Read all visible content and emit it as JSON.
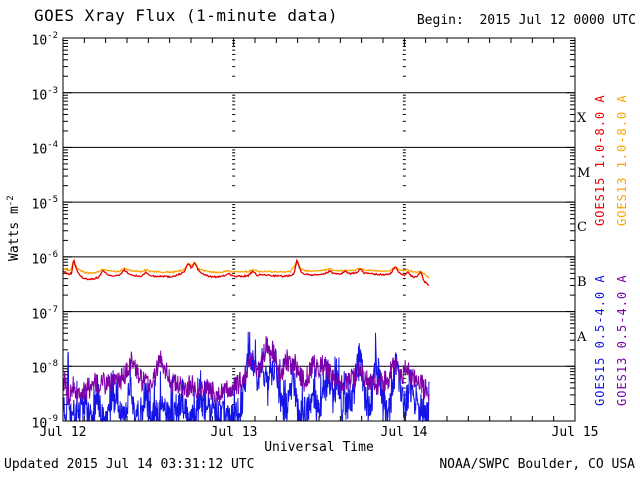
{
  "page": {
    "title": "GOES Xray Flux (1-minute data)",
    "begin_label": "Begin:  2015 Jul 12 0000 UTC",
    "footer_left": "Updated 2015 Jul 14 03:31:12 UTC",
    "footer_right": "NOAA/SWPC Boulder, CO USA"
  },
  "chart_data": {
    "type": "line",
    "title": "GOES Xray Flux (1-minute data)",
    "xlabel": "Universal Time",
    "ylabel_base": "Watts m",
    "ylabel_exp": "-2",
    "x_range_hours": [
      0,
      72
    ],
    "x_minor_tick_hours": 3,
    "x_major_ticks": [
      {
        "hour": 0,
        "label": "Jul 12"
      },
      {
        "hour": 24,
        "label": "Jul 13"
      },
      {
        "hour": 48,
        "label": "Jul 14"
      },
      {
        "hour": 72,
        "label": "Jul 15"
      }
    ],
    "y_log_range": [
      -9,
      -2
    ],
    "y_tick_base": "10",
    "y_tick_exponents": [
      "-2",
      "-3",
      "-4",
      "-5",
      "-6",
      "-7",
      "-8",
      "-9"
    ],
    "hline_exponents": [
      -3,
      -4,
      -5,
      -6,
      -7,
      -8
    ],
    "vline_hours": [
      24,
      48
    ],
    "class_bands": [
      {
        "label": "X",
        "center_log": -3.5
      },
      {
        "label": "M",
        "center_log": -4.5
      },
      {
        "label": "C",
        "center_log": -5.5
      },
      {
        "label": "B",
        "center_log": -6.5
      },
      {
        "label": "A",
        "center_log": -7.5
      }
    ],
    "legend": [
      {
        "text": "GOES15 1.0-8.0 A",
        "color": "#e60000"
      },
      {
        "text": "GOES13 1.0-8.0 A",
        "color": "#ffa300"
      },
      {
        "text": "GOES15 0.5-4.0 A",
        "color": "#1414e6"
      },
      {
        "text": "GOES13 0.5-4.0 A",
        "color": "#7d00a8"
      }
    ],
    "series": [
      {
        "name": "GOES15 0.5-4.0 A",
        "color": "#1414e6",
        "scale": 1e-09,
        "width": 1,
        "step_h": 0.05,
        "noise_log": 0.3,
        "spike_prob": 0.22,
        "spike_log": 0.5,
        "floor": 1e-09,
        "seed": 77,
        "points": [
          [
            0,
            1.2
          ],
          [
            0.5,
            1.1
          ],
          [
            0.7,
            24
          ],
          [
            0.9,
            1.2
          ],
          [
            1.5,
            1.1
          ],
          [
            2.5,
            1.2
          ],
          [
            3.2,
            2.5
          ],
          [
            3.6,
            1.1
          ],
          [
            4.5,
            1.3
          ],
          [
            5,
            3
          ],
          [
            5.4,
            1.1
          ],
          [
            6.2,
            1.2
          ],
          [
            7,
            2.2
          ],
          [
            7.6,
            4
          ],
          [
            8,
            1.2
          ],
          [
            9,
            1.3
          ],
          [
            9.6,
            3.5
          ],
          [
            10,
            1.2
          ],
          [
            11,
            1.1
          ],
          [
            11.8,
            2.5
          ],
          [
            12.3,
            1.1
          ],
          [
            13.5,
            1.2
          ],
          [
            14.2,
            2
          ],
          [
            15,
            1.1
          ],
          [
            16,
            1.3
          ],
          [
            16.8,
            2.2
          ],
          [
            17.5,
            1.1
          ],
          [
            18.5,
            1.2
          ],
          [
            19.5,
            2
          ],
          [
            20,
            1.1
          ],
          [
            21.2,
            1.8
          ],
          [
            22,
            1.1
          ],
          [
            23,
            1.3
          ],
          [
            24,
            1.1
          ],
          [
            25,
            1.4
          ],
          [
            25.6,
            6
          ],
          [
            26.1,
            16
          ],
          [
            26.5,
            9
          ],
          [
            26.9,
            14
          ],
          [
            27.4,
            4
          ],
          [
            27.9,
            13
          ],
          [
            28.4,
            6
          ],
          [
            28.9,
            3
          ],
          [
            29.4,
            9
          ],
          [
            29.9,
            11
          ],
          [
            30.4,
            3
          ],
          [
            31,
            1.5
          ],
          [
            31.8,
            2
          ],
          [
            32.4,
            7
          ],
          [
            32.9,
            2
          ],
          [
            33.5,
            1.3
          ],
          [
            34.5,
            1.5
          ],
          [
            35.2,
            3
          ],
          [
            36,
            1.3
          ],
          [
            36.8,
            4
          ],
          [
            37.4,
            7
          ],
          [
            38,
            2.5
          ],
          [
            38.6,
            6
          ],
          [
            39.2,
            1.5
          ],
          [
            40,
            1.8
          ],
          [
            40.8,
            3
          ],
          [
            41.4,
            10
          ],
          [
            41.9,
            12
          ],
          [
            42.4,
            2.5
          ],
          [
            43.2,
            1.5
          ],
          [
            43.9,
            8
          ],
          [
            44.4,
            9
          ],
          [
            44.9,
            2
          ],
          [
            45.6,
            1.3
          ],
          [
            46.3,
            3
          ],
          [
            46.9,
            13
          ],
          [
            47.4,
            3
          ],
          [
            48.1,
            1.5
          ],
          [
            48.8,
            5
          ],
          [
            49.4,
            2
          ],
          [
            50.1,
            1.4
          ],
          [
            50.8,
            1.2
          ],
          [
            51.5,
            1.1
          ]
        ]
      },
      {
        "name": "GOES13 0.5-4.0 A",
        "color": "#7d00a8",
        "scale": 1e-09,
        "width": 1,
        "step_h": 0.06,
        "noise_log": 0.2,
        "spike_prob": 0,
        "spike_log": 0,
        "floor": 1e-09,
        "seed": 31,
        "points": [
          [
            0,
            4
          ],
          [
            0.3,
            6
          ],
          [
            0.6,
            2.5
          ],
          [
            1,
            3.5
          ],
          [
            1.5,
            5
          ],
          [
            2,
            3
          ],
          [
            2.5,
            4
          ],
          [
            3,
            3.2
          ],
          [
            3.5,
            4.5
          ],
          [
            4,
            3.5
          ],
          [
            4.5,
            5
          ],
          [
            5,
            4
          ],
          [
            5.5,
            5.5
          ],
          [
            6,
            4.5
          ],
          [
            6.5,
            5.5
          ],
          [
            7,
            4.5
          ],
          [
            7.5,
            5
          ],
          [
            8,
            5.5
          ],
          [
            8.5,
            6.5
          ],
          [
            9,
            8
          ],
          [
            9.6,
            13
          ],
          [
            10.2,
            9
          ],
          [
            10.8,
            6
          ],
          [
            11.5,
            5
          ],
          [
            12,
            4.5
          ],
          [
            12.5,
            5
          ],
          [
            13,
            7
          ],
          [
            13.7,
            14
          ],
          [
            14.3,
            10
          ],
          [
            15,
            6
          ],
          [
            15.5,
            5
          ],
          [
            16,
            4.5
          ],
          [
            17,
            4
          ],
          [
            18,
            4.5
          ],
          [
            19,
            3.8
          ],
          [
            20,
            4.2
          ],
          [
            21,
            3.5
          ],
          [
            22,
            3
          ],
          [
            23,
            3.5
          ],
          [
            24,
            4
          ],
          [
            24.5,
            4.5
          ],
          [
            25,
            5
          ],
          [
            25.5,
            6
          ],
          [
            26,
            9
          ],
          [
            26.5,
            14
          ],
          [
            27,
            11
          ],
          [
            27.5,
            8
          ],
          [
            28,
            12
          ],
          [
            28.6,
            26
          ],
          [
            29.1,
            18
          ],
          [
            29.5,
            20
          ],
          [
            30,
            10
          ],
          [
            30.5,
            7
          ],
          [
            31,
            9
          ],
          [
            31.5,
            14
          ],
          [
            32,
            10
          ],
          [
            32.6,
            12
          ],
          [
            33,
            8
          ],
          [
            33.5,
            6
          ],
          [
            34,
            5
          ],
          [
            34.7,
            8
          ],
          [
            35.3,
            11
          ],
          [
            36,
            9
          ],
          [
            36.7,
            11
          ],
          [
            37.5,
            8
          ],
          [
            38,
            6
          ],
          [
            38.5,
            5
          ],
          [
            39,
            4.5
          ],
          [
            40,
            5
          ],
          [
            41,
            6
          ],
          [
            41.8,
            9
          ],
          [
            42.5,
            6
          ],
          [
            43,
            5
          ],
          [
            44,
            4.5
          ],
          [
            45,
            5
          ],
          [
            45.8,
            6
          ],
          [
            46.6,
            13
          ],
          [
            47.1,
            8
          ],
          [
            47.7,
            6
          ],
          [
            48.3,
            10
          ],
          [
            48.8,
            7
          ],
          [
            49.3,
            5.5
          ],
          [
            50,
            6
          ],
          [
            50.5,
            4.5
          ],
          [
            51,
            3.8
          ],
          [
            51.5,
            3.2
          ]
        ]
      },
      {
        "name": "GOES13 1.0-8.0 A",
        "color": "#ffa300",
        "scale": 1e-07,
        "width": 1.3,
        "step_h": 0.12,
        "noise_log": 0.012,
        "spike_prob": 0,
        "spike_log": 0,
        "floor": 1e-09,
        "seed": 5,
        "points": [
          [
            0,
            6.0
          ],
          [
            1,
            5.6
          ],
          [
            1.5,
            8.0
          ],
          [
            2,
            6.2
          ],
          [
            3,
            5.2
          ],
          [
            4,
            5.0
          ],
          [
            5,
            5.3
          ],
          [
            5.6,
            6.0
          ],
          [
            6.5,
            5.5
          ],
          [
            8,
            5.4
          ],
          [
            8.6,
            6.2
          ],
          [
            9.5,
            5.6
          ],
          [
            11,
            5.3
          ],
          [
            11.6,
            5.8
          ],
          [
            12.5,
            5.4
          ],
          [
            14,
            5.3
          ],
          [
            15,
            5.2
          ],
          [
            16,
            5.4
          ],
          [
            17,
            5.8
          ],
          [
            17.6,
            7.8
          ],
          [
            18.1,
            6.6
          ],
          [
            18.5,
            7.9
          ],
          [
            19,
            6.2
          ],
          [
            20,
            5.5
          ],
          [
            21,
            5.3
          ],
          [
            22,
            5.2
          ],
          [
            23.3,
            5.6
          ],
          [
            24,
            5.3
          ],
          [
            25,
            5.3
          ],
          [
            26,
            5.4
          ],
          [
            26.7,
            5.9
          ],
          [
            27.5,
            5.4
          ],
          [
            29,
            5.4
          ],
          [
            30,
            5.3
          ],
          [
            31,
            5.3
          ],
          [
            32,
            5.4
          ],
          [
            32.9,
            8.2
          ],
          [
            33.5,
            6.0
          ],
          [
            34,
            5.6
          ],
          [
            35,
            5.5
          ],
          [
            36,
            5.6
          ],
          [
            37,
            5.8
          ],
          [
            37.5,
            6.1
          ],
          [
            38,
            5.7
          ],
          [
            39,
            5.6
          ],
          [
            40,
            5.6
          ],
          [
            41,
            5.7
          ],
          [
            41.8,
            6.3
          ],
          [
            42.5,
            5.7
          ],
          [
            44,
            5.6
          ],
          [
            45,
            5.5
          ],
          [
            46,
            5.6
          ],
          [
            46.7,
            6.6
          ],
          [
            47.5,
            5.6
          ],
          [
            48.5,
            5.8
          ],
          [
            49.5,
            5.2
          ],
          [
            50.3,
            5.4
          ],
          [
            51,
            4.6
          ],
          [
            51.5,
            4.2
          ]
        ]
      },
      {
        "name": "GOES15 1.0-8.0 A",
        "color": "#e60000",
        "scale": 1e-07,
        "width": 1.3,
        "step_h": 0.12,
        "noise_log": 0.015,
        "spike_prob": 0,
        "spike_log": 0,
        "floor": 1e-09,
        "seed": 13,
        "points": [
          [
            0,
            5.5
          ],
          [
            0.7,
            4.8
          ],
          [
            1.2,
            5.0
          ],
          [
            1.5,
            9.0
          ],
          [
            1.8,
            6.5
          ],
          [
            2.3,
            4.6
          ],
          [
            3,
            4.0
          ],
          [
            4,
            3.9
          ],
          [
            5,
            4.2
          ],
          [
            5.6,
            5.6
          ],
          [
            6.2,
            4.8
          ],
          [
            7,
            4.5
          ],
          [
            8,
            4.6
          ],
          [
            8.6,
            5.8
          ],
          [
            9.2,
            4.9
          ],
          [
            10,
            4.5
          ],
          [
            11,
            4.4
          ],
          [
            11.6,
            5.2
          ],
          [
            12.2,
            4.6
          ],
          [
            13,
            4.4
          ],
          [
            14,
            4.5
          ],
          [
            15,
            4.3
          ],
          [
            16,
            4.6
          ],
          [
            17,
            5.2
          ],
          [
            17.6,
            7.6
          ],
          [
            18.1,
            6.2
          ],
          [
            18.5,
            7.9
          ],
          [
            19,
            5.8
          ],
          [
            19.6,
            4.9
          ],
          [
            20.5,
            4.4
          ],
          [
            21.5,
            4.3
          ],
          [
            22.5,
            4.4
          ],
          [
            23.3,
            5.0
          ],
          [
            24,
            4.4
          ],
          [
            25,
            4.4
          ],
          [
            26,
            4.5
          ],
          [
            26.7,
            5.4
          ],
          [
            27.3,
            4.6
          ],
          [
            28.2,
            4.7
          ],
          [
            29,
            4.6
          ],
          [
            30,
            4.5
          ],
          [
            31,
            4.4
          ],
          [
            32,
            4.6
          ],
          [
            32.5,
            5.0
          ],
          [
            32.9,
            8.8
          ],
          [
            33.4,
            5.6
          ],
          [
            34,
            4.8
          ],
          [
            35,
            4.7
          ],
          [
            36,
            4.8
          ],
          [
            37,
            5.0
          ],
          [
            37.5,
            5.6
          ],
          [
            38,
            5.0
          ],
          [
            39,
            4.9
          ],
          [
            39.7,
            5.4
          ],
          [
            40.5,
            4.9
          ],
          [
            41.3,
            5.2
          ],
          [
            41.8,
            6.0
          ],
          [
            42.3,
            5.1
          ],
          [
            43,
            4.9
          ],
          [
            44,
            4.8
          ],
          [
            45,
            4.7
          ],
          [
            46,
            4.8
          ],
          [
            46.7,
            6.6
          ],
          [
            47.2,
            5.2
          ],
          [
            48,
            4.6
          ],
          [
            48.5,
            5.5
          ],
          [
            49,
            4.4
          ],
          [
            49.6,
            4.2
          ],
          [
            50.3,
            5.3
          ],
          [
            50.8,
            3.6
          ],
          [
            51.2,
            3.2
          ],
          [
            51.5,
            3.0
          ]
        ]
      }
    ]
  }
}
